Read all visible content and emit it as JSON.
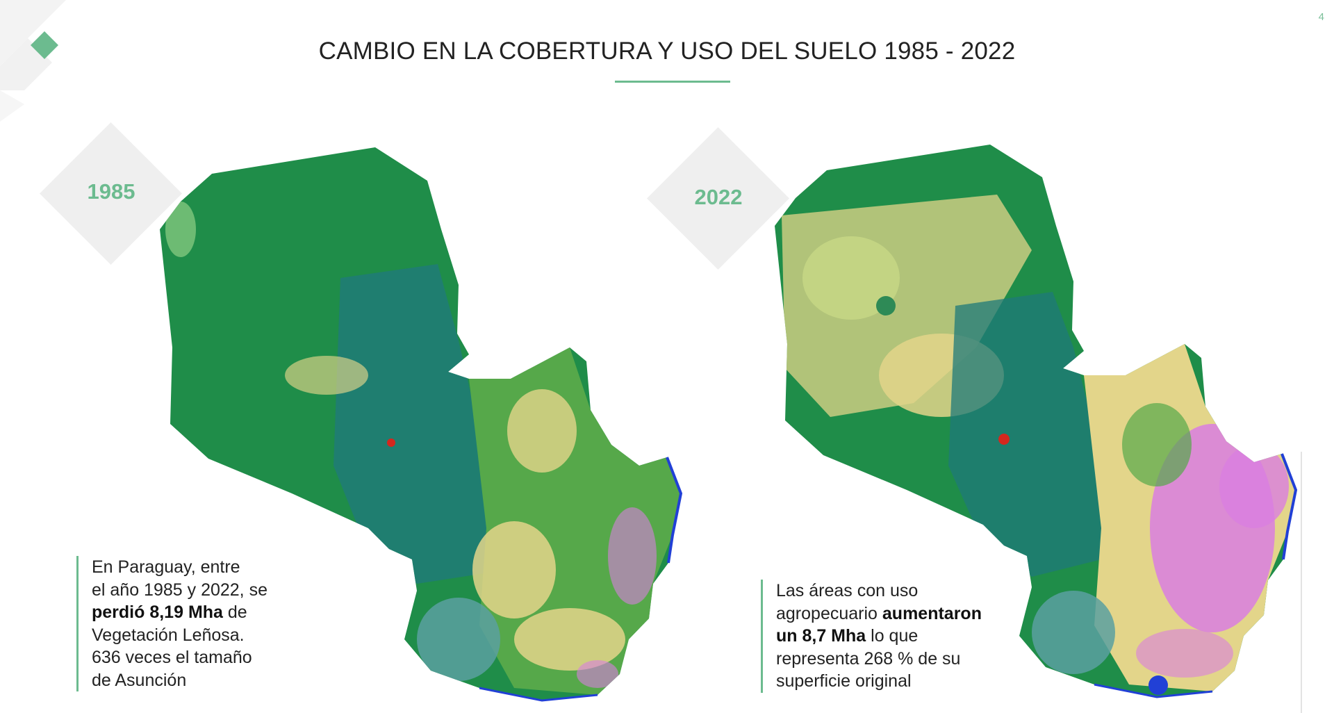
{
  "page": {
    "number": "4",
    "title": "CAMBIO EN LA COBERTURA Y USO DEL SUELO 1985 - 2022"
  },
  "maps": [
    {
      "year": "1985"
    },
    {
      "year": "2022"
    }
  ],
  "notes": {
    "left": {
      "line1": "En Paraguay, entre",
      "line2": "el año 1985 y 2022, se",
      "line3_bold": "perdió 8,19 Mha",
      "line3_rest": " de",
      "line4": "Vegetación Leñosa.",
      "line5": "636 veces el tamaño",
      "line6": "de Asunción"
    },
    "right": {
      "line1": "Las áreas con uso",
      "line2_pre": "agropecuario ",
      "line2_bold": "aumentaron",
      "line3_bold": "un 8,7 Mha",
      "line3_rest": " lo que",
      "line4": "representa 268 % de su",
      "line5": "superficie original"
    }
  },
  "colors": {
    "accent": "#6cbb8f",
    "forest": "#1f8d49",
    "wetland_savanna": "#1f7a7a",
    "agriculture": "#e3d58a",
    "pasture": "#d97ee0",
    "urban": "#d4271e",
    "water": "#2140d6"
  }
}
